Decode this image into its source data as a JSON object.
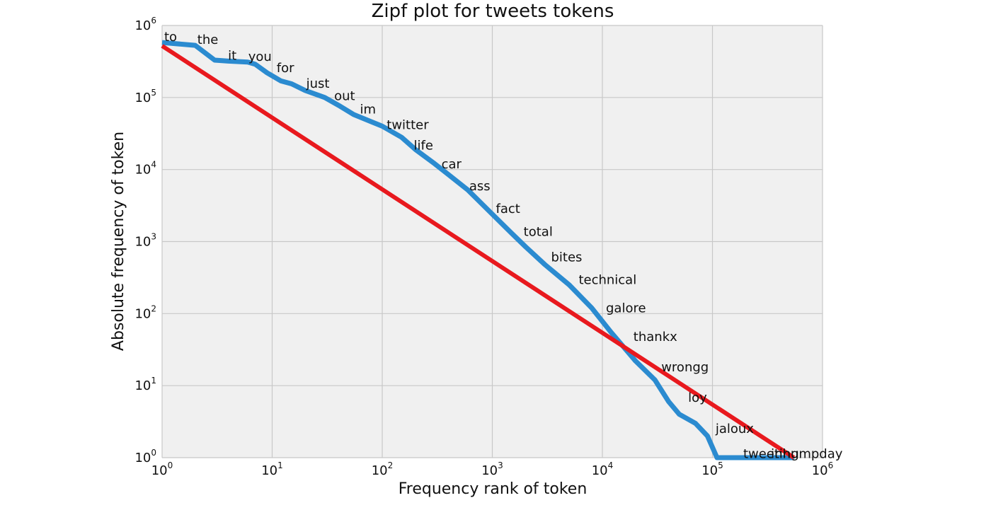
{
  "chart_data": {
    "type": "line",
    "title": "Zipf plot for tweets tokens",
    "xlabel": "Frequency rank of token",
    "ylabel": "Absolute frequency of token",
    "xscale": "log",
    "yscale": "log",
    "xlim": [
      1,
      1000000
    ],
    "ylim": [
      1,
      1000000
    ],
    "grid": true,
    "x_ticks": [
      {
        "base": "10",
        "exp": "0",
        "value": 1
      },
      {
        "base": "10",
        "exp": "1",
        "value": 10
      },
      {
        "base": "10",
        "exp": "2",
        "value": 100
      },
      {
        "base": "10",
        "exp": "3",
        "value": 1000
      },
      {
        "base": "10",
        "exp": "4",
        "value": 10000
      },
      {
        "base": "10",
        "exp": "5",
        "value": 100000
      },
      {
        "base": "10",
        "exp": "6",
        "value": 1000000
      }
    ],
    "y_ticks": [
      {
        "base": "10",
        "exp": "0",
        "value": 1
      },
      {
        "base": "10",
        "exp": "1",
        "value": 10
      },
      {
        "base": "10",
        "exp": "2",
        "value": 100
      },
      {
        "base": "10",
        "exp": "3",
        "value": 1000
      },
      {
        "base": "10",
        "exp": "4",
        "value": 10000
      },
      {
        "base": "10",
        "exp": "5",
        "value": 100000
      },
      {
        "base": "10",
        "exp": "6",
        "value": 1000000
      }
    ],
    "series": [
      {
        "color": "#2b8bd0",
        "points": [
          [
            1,
            580000
          ],
          [
            2,
            530000
          ],
          [
            3,
            330000
          ],
          [
            4,
            320000
          ],
          [
            6,
            310000
          ],
          [
            7,
            290000
          ],
          [
            9,
            220000
          ],
          [
            12,
            170000
          ],
          [
            15,
            155000
          ],
          [
            20,
            125000
          ],
          [
            30,
            100000
          ],
          [
            40,
            78000
          ],
          [
            55,
            58000
          ],
          [
            80,
            46000
          ],
          [
            100,
            40000
          ],
          [
            150,
            28000
          ],
          [
            200,
            19000
          ],
          [
            300,
            12000
          ],
          [
            400,
            8500
          ],
          [
            600,
            5200
          ],
          [
            1000,
            2400
          ],
          [
            1500,
            1300
          ],
          [
            2000,
            850
          ],
          [
            3000,
            480
          ],
          [
            5000,
            250
          ],
          [
            8000,
            120
          ],
          [
            12000,
            55
          ],
          [
            20000,
            22
          ],
          [
            30000,
            12
          ],
          [
            40000,
            6
          ],
          [
            50000,
            4
          ],
          [
            70000,
            3
          ],
          [
            90000,
            2
          ],
          [
            110000,
            1
          ],
          [
            120000,
            1
          ],
          [
            550000,
            1
          ]
        ]
      },
      {
        "color": "#e8191e",
        "points": [
          [
            1,
            520000
          ],
          [
            550000,
            1
          ]
        ]
      }
    ],
    "annotations": [
      {
        "text": "to",
        "x": 1,
        "y": 580000
      },
      {
        "text": "the",
        "x": 2,
        "y": 530000
      },
      {
        "text": "it",
        "x": 3.8,
        "y": 320000
      },
      {
        "text": "you",
        "x": 5.8,
        "y": 310000
      },
      {
        "text": "for",
        "x": 10.5,
        "y": 215000
      },
      {
        "text": "just",
        "x": 19.5,
        "y": 130000
      },
      {
        "text": "out",
        "x": 35,
        "y": 88000
      },
      {
        "text": "im",
        "x": 60,
        "y": 57000
      },
      {
        "text": "twitter",
        "x": 105,
        "y": 35000
      },
      {
        "text": "life",
        "x": 185,
        "y": 18000
      },
      {
        "text": "car",
        "x": 330,
        "y": 9900
      },
      {
        "text": "ass",
        "x": 590,
        "y": 4950
      },
      {
        "text": "fact",
        "x": 1030,
        "y": 2400
      },
      {
        "text": "total",
        "x": 1840,
        "y": 1150
      },
      {
        "text": "bites",
        "x": 3270,
        "y": 510
      },
      {
        "text": "technical",
        "x": 5820,
        "y": 245
      },
      {
        "text": "galore",
        "x": 10300,
        "y": 100
      },
      {
        "text": "thankx",
        "x": 18300,
        "y": 40
      },
      {
        "text": "wrongg",
        "x": 32800,
        "y": 15
      },
      {
        "text": "loy",
        "x": 57500,
        "y": 5.7
      },
      {
        "text": "jaloux",
        "x": 102000,
        "y": 2.1
      },
      {
        "text": "tweeting",
        "x": 182000,
        "y": 0.95
      },
      {
        "text": "inhumpday",
        "x": 325000,
        "y": 0.95
      }
    ]
  }
}
